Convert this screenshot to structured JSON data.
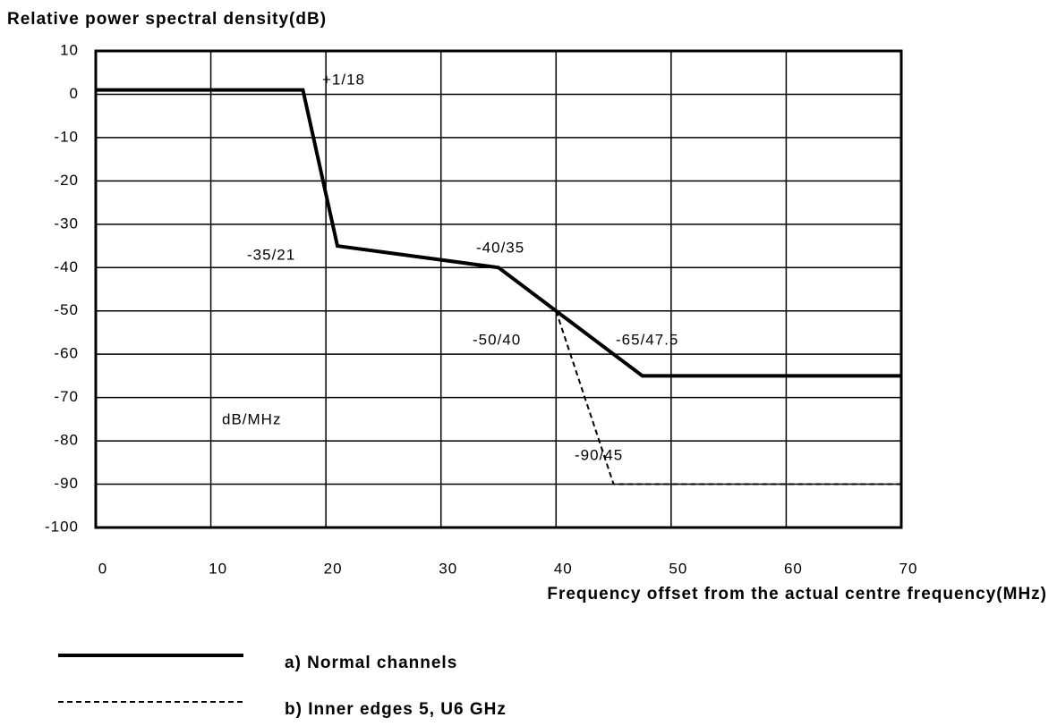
{
  "chart_data": {
    "type": "line",
    "title": "Relative power spectral density(dB)",
    "x_label": "Frequency offset from the actual centre frequency(MHz)",
    "xlim": [
      0,
      70
    ],
    "xticks": [
      0,
      10,
      20,
      30,
      40,
      50,
      60,
      70
    ],
    "ylim": [
      -100,
      10
    ],
    "yticks": [
      10,
      0,
      -10,
      -20,
      -30,
      -40,
      -50,
      -60,
      -70,
      -80,
      -90,
      -100
    ],
    "grid": true,
    "series": [
      {
        "name": "a) Normal channels",
        "color": "#000000",
        "style": "solid",
        "x": [
          0,
          18,
          21,
          35,
          40,
          47.5,
          70
        ],
        "values": [
          1,
          1,
          -35,
          -40,
          -50,
          -65,
          -65
        ]
      },
      {
        "name": "b) Inner edges 5, U6 GHz",
        "color": "#000000",
        "style": "dashed",
        "x": [
          40,
          45,
          70
        ],
        "values": [
          -50,
          -90,
          -90
        ]
      }
    ],
    "annotations": [
      "+1/18",
      "-35/21",
      "-40/35",
      "-50/40",
      "-65/47.5",
      "-90/45",
      "dB/MHz"
    ]
  }
}
